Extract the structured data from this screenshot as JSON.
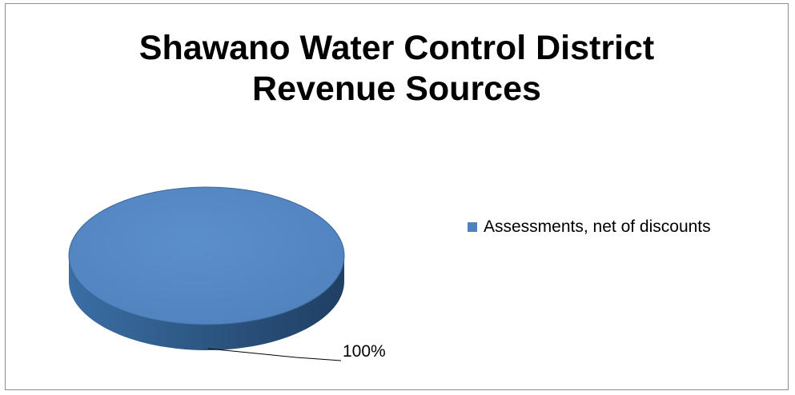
{
  "chart_data": {
    "type": "pie",
    "title_lines": [
      "Shawano Water Control District",
      "Revenue Sources"
    ],
    "series": [
      {
        "name": "Assessments, net of discounts",
        "values": [
          100
        ]
      }
    ],
    "categories": [
      "Assessments, net of discounts"
    ],
    "values": [
      100
    ],
    "data_labels": [
      "100%"
    ],
    "legend_placement": "right",
    "style": "3d",
    "colors": {
      "slice_top": "#4f81bd",
      "slice_side": "#2c5682",
      "slice_edge": "#3a6898"
    }
  }
}
